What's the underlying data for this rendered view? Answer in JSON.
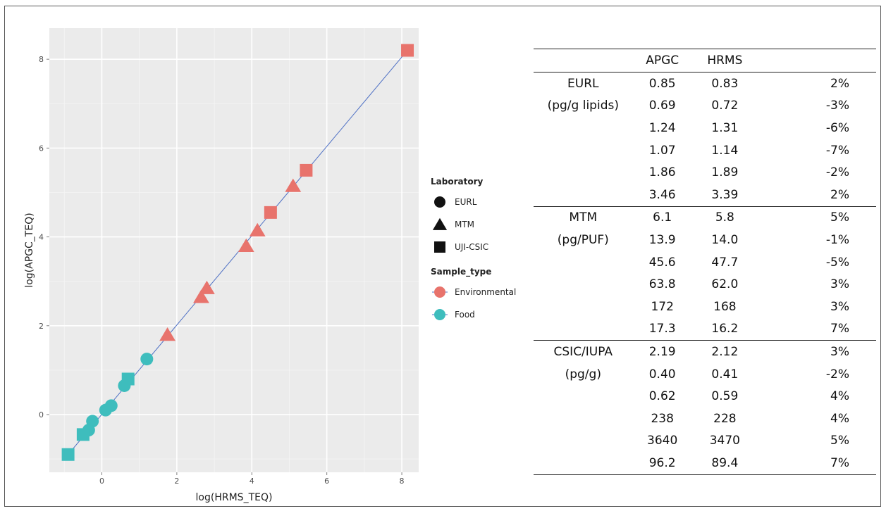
{
  "chart_data": {
    "type": "scatter",
    "xlabel": "log(HRMS_TEQ)",
    "ylabel": "log(APGC_TEQ)",
    "xlim": [
      -1.4,
      8.45
    ],
    "ylim": [
      -1.3,
      8.7
    ],
    "xticks": [
      "0",
      "2",
      "4",
      "6",
      "8"
    ],
    "yticks": [
      "0",
      "2",
      "4",
      "6",
      "8"
    ],
    "grid": true,
    "fit_line": {
      "from": [
        -0.9,
        -0.9
      ],
      "to": [
        8.15,
        8.2
      ]
    },
    "legend": {
      "laboratory_title": "Laboratory",
      "laboratory": [
        {
          "label": "EURL",
          "shape": "circle"
        },
        {
          "label": "MTM",
          "shape": "triangle"
        },
        {
          "label": "UJI-CSIC",
          "shape": "square"
        }
      ],
      "sample_title": "Sample_type",
      "sample": [
        {
          "label": "Environmental",
          "color": "#E8736C"
        },
        {
          "label": "Food",
          "color": "#3EBDBD"
        }
      ]
    },
    "points": [
      {
        "x": 8.15,
        "y": 8.2,
        "lab": "UJI-CSIC",
        "sample": "Environmental"
      },
      {
        "x": 5.45,
        "y": 5.5,
        "lab": "UJI-CSIC",
        "sample": "Environmental"
      },
      {
        "x": 5.1,
        "y": 5.15,
        "lab": "MTM",
        "sample": "Environmental"
      },
      {
        "x": 4.5,
        "y": 4.55,
        "lab": "UJI-CSIC",
        "sample": "Environmental"
      },
      {
        "x": 4.15,
        "y": 4.15,
        "lab": "MTM",
        "sample": "Environmental"
      },
      {
        "x": 3.85,
        "y": 3.8,
        "lab": "MTM",
        "sample": "Environmental"
      },
      {
        "x": 2.8,
        "y": 2.85,
        "lab": "MTM",
        "sample": "Environmental"
      },
      {
        "x": 2.65,
        "y": 2.65,
        "lab": "MTM",
        "sample": "Environmental"
      },
      {
        "x": 1.75,
        "y": 1.8,
        "lab": "MTM",
        "sample": "Environmental"
      },
      {
        "x": 1.2,
        "y": 1.25,
        "lab": "EURL",
        "sample": "Food"
      },
      {
        "x": 0.7,
        "y": 0.8,
        "lab": "UJI-CSIC",
        "sample": "Food"
      },
      {
        "x": 0.6,
        "y": 0.65,
        "lab": "EURL",
        "sample": "Food"
      },
      {
        "x": 0.25,
        "y": 0.2,
        "lab": "EURL",
        "sample": "Food"
      },
      {
        "x": 0.1,
        "y": 0.1,
        "lab": "EURL",
        "sample": "Food"
      },
      {
        "x": -0.25,
        "y": -0.15,
        "lab": "EURL",
        "sample": "Food"
      },
      {
        "x": -0.35,
        "y": -0.35,
        "lab": "EURL",
        "sample": "Food"
      },
      {
        "x": -0.5,
        "y": -0.45,
        "lab": "UJI-CSIC",
        "sample": "Food"
      },
      {
        "x": -0.9,
        "y": -0.9,
        "lab": "UJI-CSIC",
        "sample": "Food"
      }
    ],
    "table": {
      "columns": [
        "",
        "APGC",
        "HRMS",
        ""
      ],
      "groups": [
        {
          "labels": [
            "EURL",
            "(pg/g lipids)"
          ],
          "rows": [
            [
              "0.85",
              "0.83",
              "2%"
            ],
            [
              "0.69",
              "0.72",
              "-3%"
            ],
            [
              "1.24",
              "1.31",
              "-6%"
            ],
            [
              "1.07",
              "1.14",
              "-7%"
            ],
            [
              "1.86",
              "1.89",
              "-2%"
            ],
            [
              "3.46",
              "3.39",
              "2%"
            ]
          ]
        },
        {
          "labels": [
            "MTM",
            "(pg/PUF)"
          ],
          "rows": [
            [
              "6.1",
              "5.8",
              "5%"
            ],
            [
              "13.9",
              "14.0",
              "-1%"
            ],
            [
              "45.6",
              "47.7",
              "-5%"
            ],
            [
              "63.8",
              "62.0",
              "3%"
            ],
            [
              "172",
              "168",
              "3%"
            ],
            [
              "17.3",
              "16.2",
              "7%"
            ]
          ]
        },
        {
          "labels": [
            "CSIC/IUPA",
            "(pg/g)"
          ],
          "rows": [
            [
              "2.19",
              "2.12",
              "3%"
            ],
            [
              "0.40",
              "0.41",
              "-2%"
            ],
            [
              "0.62",
              "0.59",
              "4%"
            ],
            [
              "238",
              "228",
              "4%"
            ],
            [
              "3640",
              "3470",
              "5%"
            ],
            [
              "96.2",
              "89.4",
              "7%"
            ]
          ]
        }
      ]
    }
  }
}
